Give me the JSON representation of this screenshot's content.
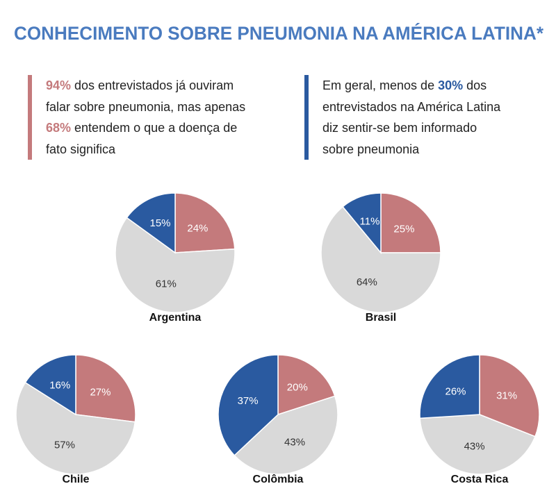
{
  "title": "CONHECIMENTO SOBRE PNEUMONIA NA AMÉRICA LATINA*",
  "notes": [
    {
      "color": "#c47a7c",
      "parts": [
        {
          "text": "94%",
          "highlight": true
        },
        {
          "text": " dos entrevistados já ouviram falar sobre pneumonia, mas apenas "
        },
        {
          "text": "68%",
          "highlight": true
        },
        {
          "text": " entendem o que a doença de fato significa"
        }
      ]
    },
    {
      "color": "#2a5aa0",
      "parts": [
        {
          "text": "Em geral, menos de "
        },
        {
          "text": "30%",
          "highlight": true
        },
        {
          "text": " dos entrevistados na América Latina diz sentir-se bem informado sobre  pneumonia"
        }
      ]
    }
  ],
  "chart_data": [
    {
      "type": "pie",
      "title": "Argentina",
      "values": [
        24,
        61,
        15
      ],
      "value_labels": [
        "24%",
        "61%",
        "15%"
      ],
      "colors": [
        "#c47a7c",
        "#d9d9d9",
        "#2a5aa0"
      ]
    },
    {
      "type": "pie",
      "title": "Brasil",
      "values": [
        25,
        64,
        11
      ],
      "value_labels": [
        "25%",
        "64%",
        "11%"
      ],
      "colors": [
        "#c47a7c",
        "#d9d9d9",
        "#2a5aa0"
      ]
    },
    {
      "type": "pie",
      "title": "Chile",
      "values": [
        27,
        57,
        16
      ],
      "value_labels": [
        "27%",
        "57%",
        "16%"
      ],
      "colors": [
        "#c47a7c",
        "#d9d9d9",
        "#2a5aa0"
      ]
    },
    {
      "type": "pie",
      "title": "Colômbia",
      "values": [
        20,
        43,
        37
      ],
      "value_labels": [
        "20%",
        "43%",
        "37%"
      ],
      "colors": [
        "#c47a7c",
        "#d9d9d9",
        "#2a5aa0"
      ]
    },
    {
      "type": "pie",
      "title": "Costa Rica",
      "values": [
        31,
        43,
        26
      ],
      "value_labels": [
        "31%",
        "43%",
        "26%"
      ],
      "colors": [
        "#c47a7c",
        "#d9d9d9",
        "#2a5aa0"
      ]
    }
  ]
}
